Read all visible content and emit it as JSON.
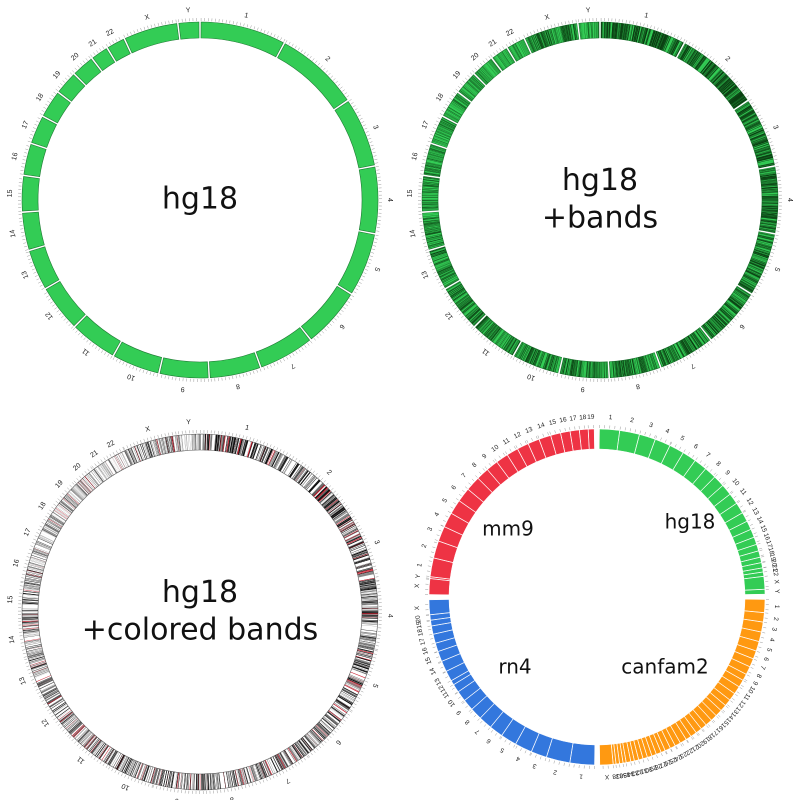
{
  "panels": [
    {
      "id": "hg18",
      "label_lines": [
        "hg18"
      ],
      "style": "solid",
      "fill": "#33cc55",
      "chromosomes": [
        "1",
        "2",
        "3",
        "4",
        "5",
        "6",
        "7",
        "8",
        "9",
        "10",
        "11",
        "12",
        "13",
        "14",
        "15",
        "16",
        "17",
        "18",
        "19",
        "20",
        "21",
        "22",
        "X",
        "Y"
      ],
      "sizes_mb": [
        247,
        243,
        199,
        191,
        181,
        171,
        159,
        146,
        140,
        135,
        134,
        132,
        114,
        106,
        100,
        89,
        79,
        76,
        64,
        62,
        47,
        50,
        155,
        58
      ]
    },
    {
      "id": "hg18-bands",
      "label_lines": [
        "hg18",
        "+bands"
      ],
      "style": "bands",
      "fill": "#33cc55",
      "band_color": "#0b3d12",
      "chromosomes": [
        "1",
        "2",
        "3",
        "4",
        "5",
        "6",
        "7",
        "8",
        "9",
        "10",
        "11",
        "12",
        "13",
        "14",
        "15",
        "16",
        "17",
        "18",
        "19",
        "20",
        "21",
        "22",
        "X",
        "Y"
      ],
      "sizes_mb": [
        247,
        243,
        199,
        191,
        181,
        171,
        159,
        146,
        140,
        135,
        134,
        132,
        114,
        106,
        100,
        89,
        79,
        76,
        64,
        62,
        47,
        50,
        155,
        58
      ]
    },
    {
      "id": "hg18-colored-bands",
      "label_lines": [
        "hg18",
        "+colored bands"
      ],
      "style": "colored-bands",
      "fill": "#ffffff",
      "band_color": "#111111",
      "centromere_color": "#cc2233",
      "chromosomes": [
        "1",
        "2",
        "3",
        "4",
        "5",
        "6",
        "7",
        "8",
        "9",
        "10",
        "11",
        "12",
        "13",
        "14",
        "15",
        "16",
        "17",
        "18",
        "19",
        "20",
        "21",
        "22",
        "X",
        "Y"
      ],
      "sizes_mb": [
        247,
        243,
        199,
        191,
        181,
        171,
        159,
        146,
        140,
        135,
        134,
        132,
        114,
        106,
        100,
        89,
        79,
        76,
        64,
        62,
        47,
        50,
        155,
        58
      ]
    },
    {
      "id": "multi-genome",
      "style": "multi",
      "genomes": [
        {
          "name": "hg18",
          "fill": "#33cc55",
          "chromosomes": [
            "1",
            "2",
            "3",
            "4",
            "5",
            "6",
            "7",
            "8",
            "9",
            "10",
            "11",
            "12",
            "13",
            "14",
            "15",
            "16",
            "17",
            "18",
            "19",
            "20",
            "21",
            "22",
            "X",
            "Y"
          ],
          "sizes_mb": [
            247,
            243,
            199,
            191,
            181,
            171,
            159,
            146,
            140,
            135,
            134,
            132,
            114,
            106,
            100,
            89,
            79,
            76,
            64,
            62,
            47,
            50,
            155,
            58
          ]
        },
        {
          "name": "canfam2",
          "fill": "#ff9911",
          "chromosomes": [
            "1",
            "2",
            "3",
            "4",
            "5",
            "6",
            "7",
            "8",
            "9",
            "10",
            "11",
            "12",
            "13",
            "14",
            "15",
            "16",
            "17",
            "18",
            "19",
            "20",
            "21",
            "22",
            "23",
            "24",
            "25",
            "26",
            "27",
            "28",
            "29",
            "30",
            "31",
            "32",
            "33",
            "34",
            "35",
            "36",
            "37",
            "38",
            "X"
          ],
          "sizes_mb": [
            125,
            88,
            94,
            91,
            91,
            77,
            80,
            77,
            62,
            70,
            75,
            73,
            64,
            61,
            65,
            60,
            65,
            56,
            58,
            59,
            51,
            62,
            53,
            49,
            52,
            39,
            46,
            42,
            42,
            41,
            40,
            39,
            32,
            42,
            27,
            31,
            31,
            24,
            127
          ]
        },
        {
          "name": "rn4",
          "fill": "#3377dd",
          "chromosomes": [
            "1",
            "2",
            "3",
            "4",
            "5",
            "6",
            "7",
            "8",
            "9",
            "10",
            "11",
            "12",
            "13",
            "14",
            "15",
            "16",
            "17",
            "18",
            "19",
            "20",
            "X"
          ],
          "sizes_mb": [
            268,
            258,
            171,
            187,
            174,
            148,
            145,
            129,
            121,
            113,
            88,
            47,
            112,
            116,
            110,
            91,
            97,
            88,
            60,
            56,
            161
          ]
        },
        {
          "name": "mm9",
          "fill": "#ee3344",
          "chromosomes": [
            "X",
            "Y",
            "1",
            "2",
            "3",
            "4",
            "5",
            "6",
            "7",
            "8",
            "9",
            "10",
            "11",
            "12",
            "13",
            "14",
            "15",
            "16",
            "17",
            "18",
            "19"
          ],
          "sizes_mb": [
            166,
            16,
            197,
            181,
            159,
            155,
            152,
            149,
            152,
            131,
            124,
            129,
            121,
            121,
            120,
            125,
            103,
            98,
            95,
            90,
            61
          ]
        }
      ]
    }
  ]
}
